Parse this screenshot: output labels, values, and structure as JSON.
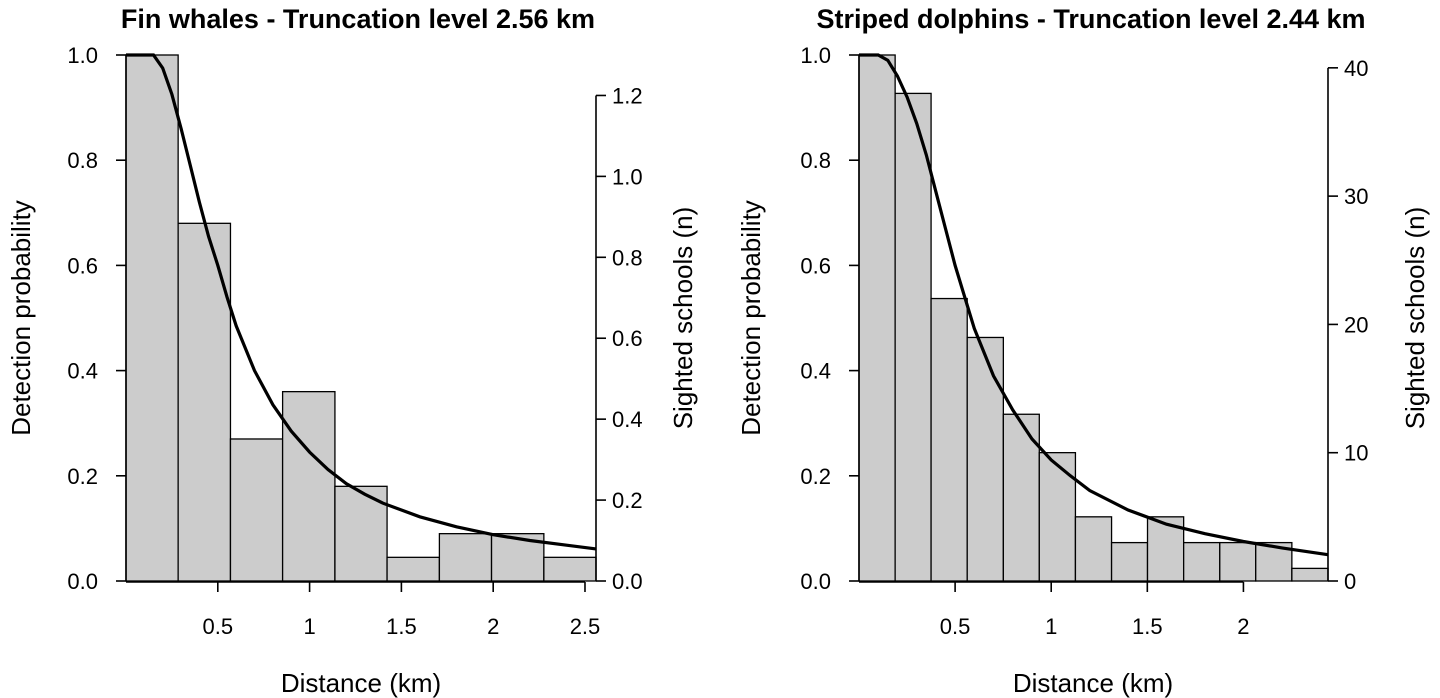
{
  "chart_data": [
    {
      "type": "bar",
      "title": "Fin whales - Truncation level 2.56 km",
      "xlabel": "Distance (km)",
      "ylabel": "Detection probability",
      "y2label": "Sighted schools (n)",
      "xlim": [
        0,
        2.56
      ],
      "ylim": [
        0,
        1.0
      ],
      "y2lim": [
        0,
        1.3
      ],
      "xticks": [
        0.5,
        1,
        1.5,
        2,
        2.5
      ],
      "xtick_labels": [
        "0.5",
        "1",
        "1.5",
        "2",
        "2.5"
      ],
      "yticks": [
        0,
        0.2,
        0.4,
        0.6,
        0.8,
        1.0
      ],
      "ytick_labels": [
        "0.0",
        "0.2",
        "0.4",
        "0.6",
        "0.8",
        "1.0"
      ],
      "y2ticks": [
        0,
        0.2,
        0.4,
        0.6,
        0.8,
        1.0,
        1.2
      ],
      "y2tick_labels": [
        "0.0",
        "0.2",
        "0.4",
        "0.6",
        "0.8",
        "1.0",
        "1.2"
      ],
      "bin_edges": [
        0,
        0.284,
        0.569,
        0.853,
        1.138,
        1.422,
        1.707,
        1.991,
        2.276,
        2.56
      ],
      "values": [
        1.0,
        0.68,
        0.27,
        0.36,
        0.18,
        0.045,
        0.09,
        0.09,
        0.045
      ],
      "detection_function": {
        "x": [
          0.0,
          0.1,
          0.15,
          0.2,
          0.25,
          0.3,
          0.35,
          0.4,
          0.45,
          0.5,
          0.55,
          0.6,
          0.7,
          0.8,
          0.9,
          1.0,
          1.1,
          1.2,
          1.3,
          1.4,
          1.5,
          1.6,
          1.8,
          2.0,
          2.2,
          2.4,
          2.56
        ],
        "y": [
          1.0,
          1.0,
          1.0,
          0.975,
          0.925,
          0.86,
          0.79,
          0.72,
          0.655,
          0.6,
          0.54,
          0.485,
          0.4,
          0.335,
          0.285,
          0.245,
          0.212,
          0.185,
          0.165,
          0.148,
          0.135,
          0.122,
          0.103,
          0.088,
          0.077,
          0.068,
          0.061
        ]
      }
    },
    {
      "type": "bar",
      "title": "Striped dolphins - Truncation level 2.44 km",
      "xlabel": "Distance (km)",
      "ylabel": "Detection probability",
      "y2label": "Sighted schools (n)",
      "xlim": [
        0,
        2.44
      ],
      "ylim": [
        0,
        1.0
      ],
      "y2lim": [
        0,
        41
      ],
      "xticks": [
        0.5,
        1,
        1.5,
        2
      ],
      "xtick_labels": [
        "0.5",
        "1",
        "1.5",
        "2"
      ],
      "yticks": [
        0,
        0.2,
        0.4,
        0.6,
        0.8,
        1.0
      ],
      "ytick_labels": [
        "0.0",
        "0.2",
        "0.4",
        "0.6",
        "0.8",
        "1.0"
      ],
      "y2ticks": [
        0,
        10,
        20,
        30,
        40
      ],
      "y2tick_labels": [
        "0",
        "10",
        "20",
        "30",
        "40"
      ],
      "bin_edges": [
        0,
        0.188,
        0.375,
        0.563,
        0.751,
        0.938,
        1.126,
        1.314,
        1.501,
        1.689,
        1.877,
        2.064,
        2.252,
        2.44
      ],
      "values": [
        1.0,
        0.927,
        0.537,
        0.463,
        0.317,
        0.244,
        0.122,
        0.073,
        0.122,
        0.073,
        0.073,
        0.073,
        0.024
      ],
      "detection_function": {
        "x": [
          0.0,
          0.1,
          0.15,
          0.2,
          0.25,
          0.3,
          0.35,
          0.4,
          0.45,
          0.5,
          0.55,
          0.6,
          0.7,
          0.8,
          0.9,
          1.0,
          1.1,
          1.2,
          1.4,
          1.6,
          1.8,
          2.0,
          2.2,
          2.44
        ],
        "y": [
          1.0,
          1.0,
          0.99,
          0.96,
          0.92,
          0.87,
          0.81,
          0.74,
          0.67,
          0.6,
          0.54,
          0.48,
          0.39,
          0.325,
          0.27,
          0.23,
          0.2,
          0.172,
          0.135,
          0.108,
          0.09,
          0.075,
          0.063,
          0.05
        ]
      }
    }
  ],
  "style": {
    "bar_fill": "#cccccc",
    "bar_stroke": "#000000",
    "curve_color": "#000000"
  }
}
